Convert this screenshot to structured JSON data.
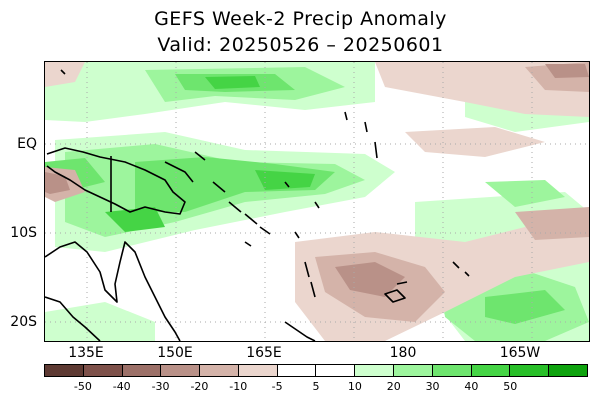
{
  "title": {
    "line1": "GEFS Week-2 Precip Anomaly",
    "line2": "Valid: 20250526 – 20250601"
  },
  "map": {
    "lat_labels": [
      "EQ",
      "10S",
      "20S"
    ],
    "lon_labels": [
      "135E",
      "150E",
      "165E",
      "180",
      "165W"
    ],
    "gridlines": true
  },
  "colorbar": {
    "colors": [
      "#5e3a33",
      "#7e514a",
      "#9c7068",
      "#b99188",
      "#d4b3a9",
      "#ebd6ce",
      "#ffffff",
      "#ffffff",
      "#ceffce",
      "#9df59d",
      "#6ee56e",
      "#45d445",
      "#28bf28",
      "#0ea30e"
    ],
    "labels": [
      "-50",
      "-40",
      "-30",
      "-20",
      "-10",
      "-5",
      "5",
      "10",
      "20",
      "30",
      "40",
      "50"
    ]
  }
}
